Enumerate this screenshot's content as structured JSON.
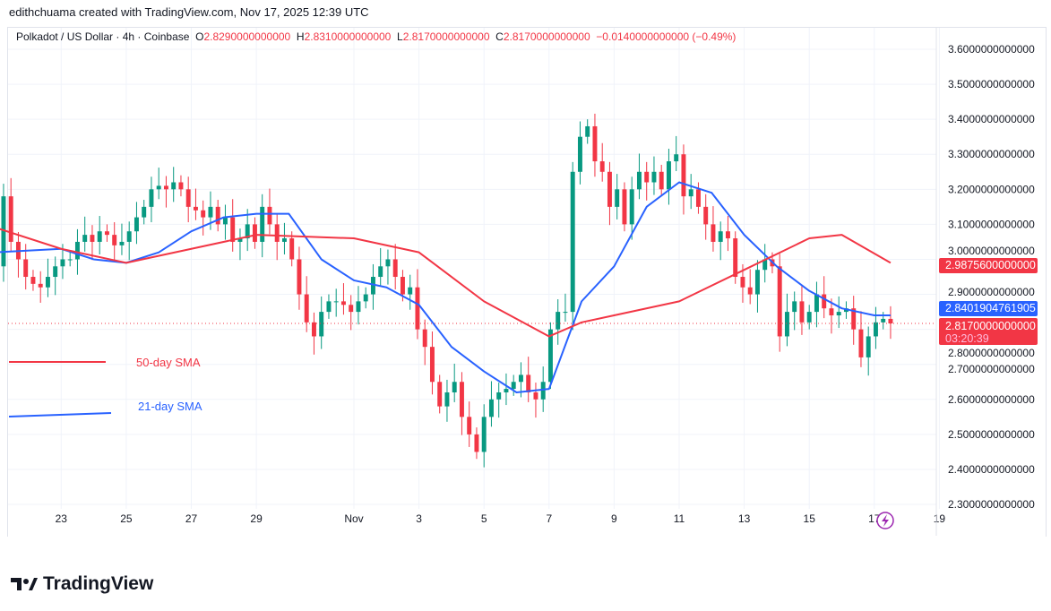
{
  "credit": "edithchuama created with TradingView.com, Nov 17, 2025 12:39 UTC",
  "legend": {
    "symbol": "Polkadot / US Dollar · 4h · Coinbase",
    "o_label": "O",
    "o": "2.8290000000000",
    "h_label": "H",
    "h": "2.8310000000000",
    "l_label": "L",
    "l": "2.8170000000000",
    "c_label": "C",
    "c": "2.8170000000000",
    "change": "−0.0140000000000 (−0.49%)"
  },
  "price_labels": {
    "sma50": "2.9875600000000",
    "sma21": "2.8401904761905",
    "last": "2.8170000000000",
    "countdown": "03:20:39"
  },
  "sma_legend": {
    "sma50": "50-day SMA",
    "sma21": "21-day SMA"
  },
  "logo": "TradingView",
  "colors": {
    "up": "#089981",
    "down": "#f23645",
    "sma21": "#2962ff",
    "sma50": "#f23645"
  },
  "chart_data": {
    "type": "candlestick",
    "title": "Polkadot / US Dollar · 4h · Coinbase",
    "ylim": [
      2.2,
      3.6
    ],
    "y_ticks": [
      "3.6000000000000",
      "3.5000000000000",
      "3.4000000000000",
      "3.3000000000000",
      "3.2000000000000",
      "3.1000000000000",
      "3.0000000000000",
      "2.9000000000000",
      "2.8000000000000",
      "2.7000000000000",
      "2.6000000000000",
      "2.5000000000000",
      "2.4000000000000",
      "2.3000000000000"
    ],
    "x_ticks": [
      {
        "label": "23",
        "day": -9
      },
      {
        "label": "25",
        "day": -7
      },
      {
        "label": "27",
        "day": -5
      },
      {
        "label": "29",
        "day": -3
      },
      {
        "label": "Nov",
        "day": 0
      },
      {
        "label": "3",
        "day": 2
      },
      {
        "label": "5",
        "day": 4
      },
      {
        "label": "7",
        "day": 6
      },
      {
        "label": "9",
        "day": 8
      },
      {
        "label": "11",
        "day": 10
      },
      {
        "label": "13",
        "day": 12
      },
      {
        "label": "15",
        "day": 14
      },
      {
        "label": "17",
        "day": 16
      },
      {
        "label": "19",
        "day": 18
      }
    ],
    "closes": [
      2.98,
      3.18,
      3.05,
      3.0,
      2.95,
      2.93,
      2.92,
      2.95,
      2.98,
      3.0,
      3.0,
      3.05,
      3.07,
      3.05,
      3.08,
      3.07,
      3.04,
      3.05,
      3.08,
      3.12,
      3.15,
      3.2,
      3.21,
      3.2,
      3.22,
      3.2,
      3.15,
      3.14,
      3.12,
      3.15,
      3.1,
      3.12,
      3.05,
      3.06,
      3.1,
      3.05,
      3.15,
      3.1,
      3.05,
      3.06,
      3.0,
      2.9,
      2.82,
      2.78,
      2.85,
      2.88,
      2.88,
      2.87,
      2.85,
      2.88,
      2.9,
      2.95,
      2.98,
      3.0,
      2.95,
      2.9,
      2.92,
      2.8,
      2.75,
      2.65,
      2.58,
      2.62,
      2.65,
      2.55,
      2.5,
      2.45,
      2.55,
      2.6,
      2.62,
      2.63,
      2.65,
      2.67,
      2.62,
      2.6,
      2.65,
      2.8,
      2.85,
      2.85,
      3.25,
      3.35,
      3.38,
      3.28,
      3.25,
      3.15,
      3.2,
      3.1,
      3.2,
      3.25,
      3.22,
      3.25,
      3.2,
      3.28,
      3.3,
      3.18,
      3.2,
      3.15,
      3.1,
      3.05,
      3.08,
      3.06,
      2.95,
      2.92,
      2.9,
      2.97,
      3.0,
      2.98,
      2.78,
      2.85,
      2.88,
      2.82,
      2.85,
      2.9,
      2.86,
      2.84,
      2.85,
      2.86,
      2.8,
      2.72,
      2.78,
      2.82,
      2.83,
      2.817
    ],
    "first_day": -11,
    "last_day": 16.5,
    "series": [
      {
        "name": "21-day SMA",
        "points": [
          [
            -11,
            3.02
          ],
          [
            -9,
            3.03
          ],
          [
            -8,
            3.0
          ],
          [
            -7,
            2.99
          ],
          [
            -6,
            3.02
          ],
          [
            -5,
            3.08
          ],
          [
            -4,
            3.12
          ],
          [
            -3,
            3.13
          ],
          [
            -2,
            3.13
          ],
          [
            -1,
            3.0
          ],
          [
            0,
            2.94
          ],
          [
            1,
            2.92
          ],
          [
            2,
            2.87
          ],
          [
            3,
            2.75
          ],
          [
            4,
            2.68
          ],
          [
            5,
            2.62
          ],
          [
            6,
            2.63
          ],
          [
            7,
            2.88
          ],
          [
            8,
            2.98
          ],
          [
            9,
            3.15
          ],
          [
            10,
            3.22
          ],
          [
            11,
            3.19
          ],
          [
            12,
            3.07
          ],
          [
            13,
            2.98
          ],
          [
            14,
            2.91
          ],
          [
            15,
            2.86
          ],
          [
            16,
            2.84
          ],
          [
            16.5,
            2.84
          ]
        ]
      },
      {
        "name": "50-day SMA",
        "points": [
          [
            -11,
            3.09
          ],
          [
            -9,
            3.03
          ],
          [
            -7,
            2.99
          ],
          [
            -5,
            3.03
          ],
          [
            -3,
            3.07
          ],
          [
            0,
            3.06
          ],
          [
            2,
            3.02
          ],
          [
            4,
            2.88
          ],
          [
            6,
            2.78
          ],
          [
            7,
            2.82
          ],
          [
            8,
            2.84
          ],
          [
            10,
            2.88
          ],
          [
            12,
            2.97
          ],
          [
            14,
            3.06
          ],
          [
            15,
            3.07
          ],
          [
            16.5,
            2.99
          ]
        ]
      }
    ]
  }
}
